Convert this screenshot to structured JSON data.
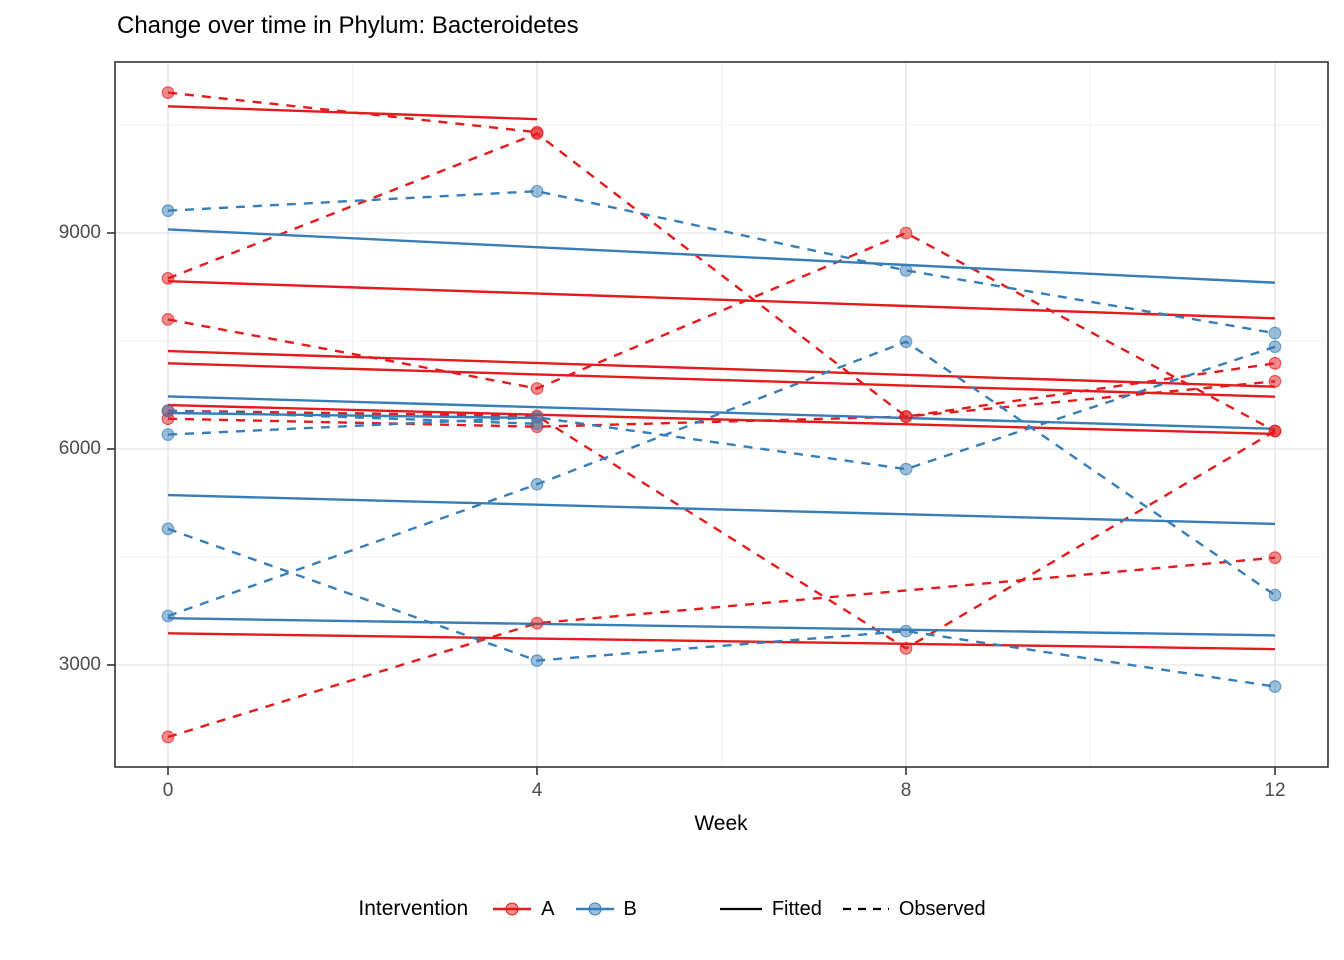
{
  "title": "Change over time in Phylum: Bacteroidetes",
  "x_axis": {
    "label": "Week",
    "ticks": [
      "0",
      "4",
      "8",
      "12"
    ],
    "tick_weeks": [
      0,
      4,
      8,
      12
    ],
    "minor_weeks": [
      2,
      6,
      10
    ]
  },
  "y_axis": {
    "ticks": [
      "3000",
      "6000",
      "9000"
    ],
    "tick_values": [
      3000,
      6000,
      9000
    ],
    "minor_values": [
      4500,
      7500,
      10500
    ]
  },
  "legend": {
    "intervention_label": "Intervention",
    "groups": [
      {
        "label": "A",
        "color": "#E41A1C"
      },
      {
        "label": "B",
        "color": "#377EB8"
      }
    ],
    "linetypes": [
      {
        "label": "Fitted",
        "style": "solid"
      },
      {
        "label": "Observed",
        "style": "dashed"
      }
    ]
  },
  "colors": {
    "grid_major": "#e3e3e3",
    "grid_minor": "#efefef",
    "panel_border": "#333333",
    "axis_text": "#4d4d4d",
    "tick_mark": "#333333"
  },
  "chart_data": {
    "type": "line",
    "title": "Change over time in Phylum: Bacteroidetes",
    "xlabel": "Week",
    "ylabel": "",
    "x_ticks": [
      0,
      4,
      8,
      12
    ],
    "y_ticks": [
      3000,
      6000,
      9000
    ],
    "ylim": [
      1480,
      11380
    ],
    "xlim": [
      -0.6,
      12.6
    ],
    "grid": "on",
    "legend_position": "bottom",
    "series_model": "each subject has a solid fitted line and a dashed observed line with points",
    "subjects": [
      {
        "id": "A1",
        "intervention": "A",
        "observed": {
          "weeks": [
            0,
            4
          ],
          "values": [
            10950,
            10400
          ]
        },
        "fitted": {
          "weeks": [
            0,
            4
          ],
          "values": [
            10760,
            10580
          ]
        }
      },
      {
        "id": "A2",
        "intervention": "A",
        "observed": {
          "weeks": [
            0,
            4,
            8,
            12
          ],
          "values": [
            8370,
            10380,
            6450,
            7190
          ]
        },
        "fitted": {
          "weeks": [
            0,
            12
          ],
          "values": [
            8330,
            7815
          ]
        }
      },
      {
        "id": "A3",
        "intervention": "A",
        "observed": {
          "weeks": [
            0,
            4,
            8,
            12
          ],
          "values": [
            7800,
            6840,
            9000,
            6250
          ]
        },
        "fitted": {
          "weeks": [
            0,
            12
          ],
          "values": [
            7360,
            6865
          ]
        }
      },
      {
        "id": "A4",
        "intervention": "A",
        "observed": {
          "weeks": [
            0,
            4,
            8,
            12
          ],
          "values": [
            6530,
            6460,
            3230,
            6250
          ]
        },
        "fitted": {
          "weeks": [
            0,
            12
          ],
          "values": [
            7190,
            6726
          ]
        }
      },
      {
        "id": "A5",
        "intervention": "A",
        "observed": {
          "weeks": [
            0,
            4,
            8,
            12
          ],
          "values": [
            6420,
            6310,
            6450,
            6940
          ]
        },
        "fitted": {
          "weeks": [
            0,
            12
          ],
          "values": [
            6610,
            6210
          ]
        }
      },
      {
        "id": "A6",
        "intervention": "A",
        "observed": {
          "weeks": [
            0,
            4,
            12
          ],
          "values": [
            2000,
            3580,
            4490
          ]
        },
        "fitted": {
          "weeks": [
            0,
            12
          ],
          "values": [
            3440,
            3220
          ]
        }
      },
      {
        "id": "B1",
        "intervention": "B",
        "observed": {
          "weeks": [
            0,
            4,
            8,
            12
          ],
          "values": [
            9310,
            9580,
            8480,
            7610
          ]
        },
        "fitted": {
          "weeks": [
            0,
            12
          ],
          "values": [
            9050,
            8310
          ]
        }
      },
      {
        "id": "B2",
        "intervention": "B",
        "observed": {
          "weeks": [
            0,
            4,
            8,
            12
          ],
          "values": [
            6200,
            6440,
            5720,
            7420
          ]
        },
        "fitted": {
          "weeks": [
            0,
            12
          ],
          "values": [
            6730,
            6280
          ]
        }
      },
      {
        "id": "B3",
        "intervention": "B",
        "observed": {
          "weeks": [
            0,
            4
          ],
          "values": [
            6530,
            6350
          ]
        },
        "fitted": {
          "weeks": [
            0,
            4
          ],
          "values": [
            6500,
            6430
          ]
        }
      },
      {
        "id": "B4",
        "intervention": "B",
        "observed": {
          "weeks": [
            0,
            4,
            8,
            12
          ],
          "values": [
            4890,
            3060,
            3470,
            2700
          ]
        },
        "fitted": {
          "weeks": [
            0,
            12
          ],
          "values": [
            5360,
            4960
          ]
        }
      },
      {
        "id": "B5",
        "intervention": "B",
        "observed": {
          "weeks": [
            0,
            4,
            8,
            12
          ],
          "values": [
            3680,
            5510,
            7490,
            3970
          ]
        },
        "fitted": {
          "weeks": [
            0,
            12
          ],
          "values": [
            3650,
            3410
          ]
        }
      }
    ]
  }
}
